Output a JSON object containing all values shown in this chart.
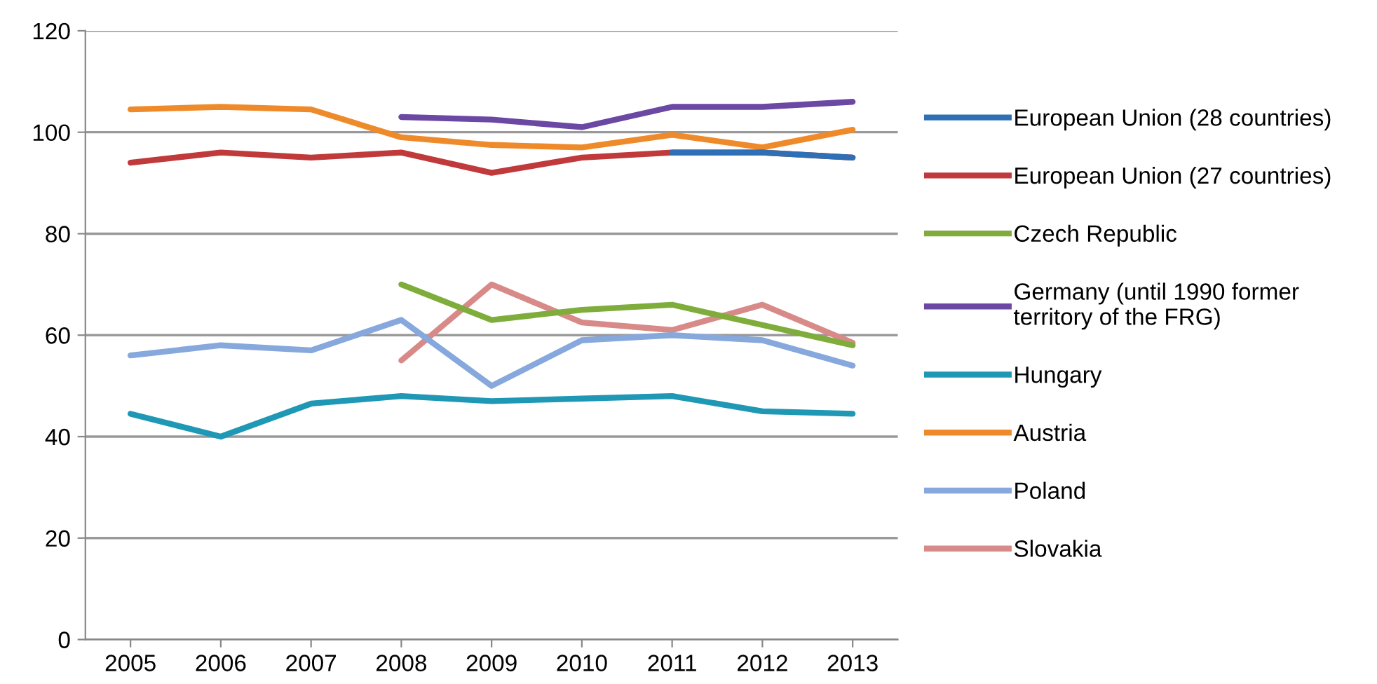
{
  "chart_data": {
    "type": "line",
    "categories": [
      "2005",
      "2006",
      "2007",
      "2008",
      "2009",
      "2010",
      "2011",
      "2012",
      "2013"
    ],
    "series": [
      {
        "name": "European Union (28 countries)",
        "color": "#2e6fb5",
        "values": [
          null,
          null,
          null,
          null,
          null,
          null,
          96,
          96,
          95
        ]
      },
      {
        "name": "European Union (27 countries)",
        "color": "#c0393b",
        "values": [
          94,
          96,
          95,
          96,
          92,
          95,
          96,
          96,
          95
        ]
      },
      {
        "name": "Czech Republic",
        "color": "#7fad3c",
        "values": [
          null,
          null,
          null,
          70,
          63,
          65,
          66,
          62,
          58
        ]
      },
      {
        "name": "Germany (until 1990 former territory of the FRG)",
        "color": "#6a48a3",
        "values": [
          null,
          null,
          null,
          103,
          102.5,
          101,
          105,
          105,
          106
        ]
      },
      {
        "name": "Hungary",
        "color": "#1f98b5",
        "values": [
          44.5,
          40,
          46.5,
          48,
          47,
          47.5,
          48,
          45,
          44.5
        ]
      },
      {
        "name": "Austria",
        "color": "#ef8a2b",
        "values": [
          104.5,
          105,
          104.5,
          99,
          97.5,
          97,
          99.5,
          97,
          100.5
        ]
      },
      {
        "name": "Poland",
        "color": "#86a8dc",
        "values": [
          56,
          58,
          57,
          63,
          50,
          59,
          60,
          59,
          54
        ]
      },
      {
        "name": "Slovakia",
        "color": "#d88a88",
        "values": [
          null,
          null,
          null,
          55,
          70,
          62.5,
          61,
          66,
          58.5
        ]
      }
    ],
    "ylim": [
      0,
      120
    ],
    "yticks": [
      0,
      20,
      40,
      60,
      80,
      100,
      120
    ],
    "grid": "y",
    "legend": "right",
    "marker": "none",
    "line_style": "solid"
  }
}
